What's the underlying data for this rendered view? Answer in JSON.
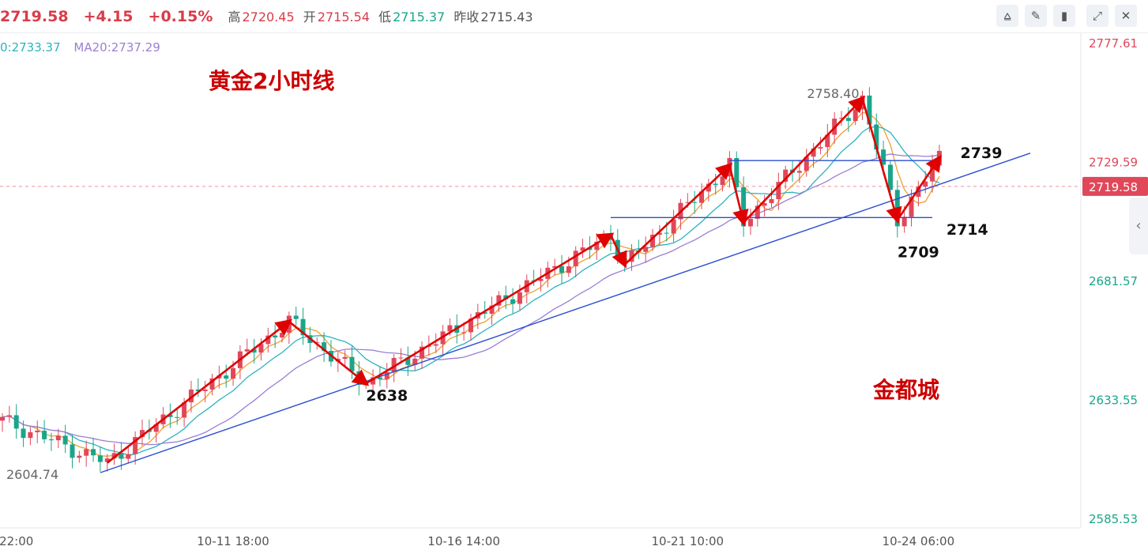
{
  "quote": {
    "last": "2719.58",
    "change": "+4.15",
    "change_pct": "+0.15%",
    "high_label": "高",
    "high": "2720.45",
    "open_label": "开",
    "open": "2715.54",
    "low_label": "低",
    "low": "2715.37",
    "prev_close_label": "昨收",
    "prev_close": "2715.43"
  },
  "toolbar": {
    "icons": [
      "indicator-icon",
      "draw-pencil-icon",
      "candlestick-icon",
      "fullscreen-icon",
      "close-icon"
    ]
  },
  "ma_legend": {
    "ma10": "0:2733.37",
    "ma20": "MA20:2737.29"
  },
  "colors": {
    "up": "#e0485a",
    "down": "#1aa58a",
    "annotation": "#e00000",
    "trendline": "#2a4fd0",
    "ma5": "#f0a030",
    "ma10": "#2bb3c0",
    "ma20": "#9b7fd4"
  },
  "chart_data": {
    "type": "candlestick",
    "title": "黄金2小时线",
    "watermark": "金都城",
    "y_ticks": [
      "2777.61",
      "2729.59",
      "2681.57",
      "2633.55",
      "2585.53"
    ],
    "ylim": [
      2585.53,
      2777.61
    ],
    "current_price_label": "2719.58",
    "x_ticks": [
      {
        "label": "22:00",
        "index": 2
      },
      {
        "label": "10-11 18:00",
        "index": 33
      },
      {
        "label": "10-16 14:00",
        "index": 66
      },
      {
        "label": "10-21 10:00",
        "index": 98
      },
      {
        "label": "10-24 06:00",
        "index": 131
      }
    ],
    "extreme_labels": [
      {
        "text": "2758.40",
        "price": 2758.4
      },
      {
        "text": "2604.74",
        "price": 2604.74
      }
    ],
    "candles": [],
    "swing_points": [
      {
        "i": 15,
        "price": 2608
      },
      {
        "i": 41,
        "price": 2665
      },
      {
        "i": 52,
        "price": 2640
      },
      {
        "i": 87,
        "price": 2700
      },
      {
        "i": 89,
        "price": 2688
      },
      {
        "i": 104,
        "price": 2728
      },
      {
        "i": 106,
        "price": 2705
      },
      {
        "i": 123,
        "price": 2755
      },
      {
        "i": 128,
        "price": 2706
      },
      {
        "i": 134,
        "price": 2731
      }
    ],
    "annotations": [
      {
        "text": "2638",
        "i": 55,
        "price": 2633
      },
      {
        "text": "2714",
        "i": 138,
        "price": 2700
      },
      {
        "text": "2709",
        "i": 131,
        "price": 2691
      },
      {
        "text": "2739",
        "i": 140,
        "price": 2731
      }
    ],
    "trendline": {
      "from": {
        "i": 14,
        "price": 2604
      },
      "to": {
        "i": 147,
        "price": 2733
      }
    },
    "range_lines": [
      {
        "from_i": 104,
        "to_i": 133,
        "price": 2730
      },
      {
        "from_i": 87,
        "to_i": 133,
        "price": 2707
      }
    ]
  }
}
